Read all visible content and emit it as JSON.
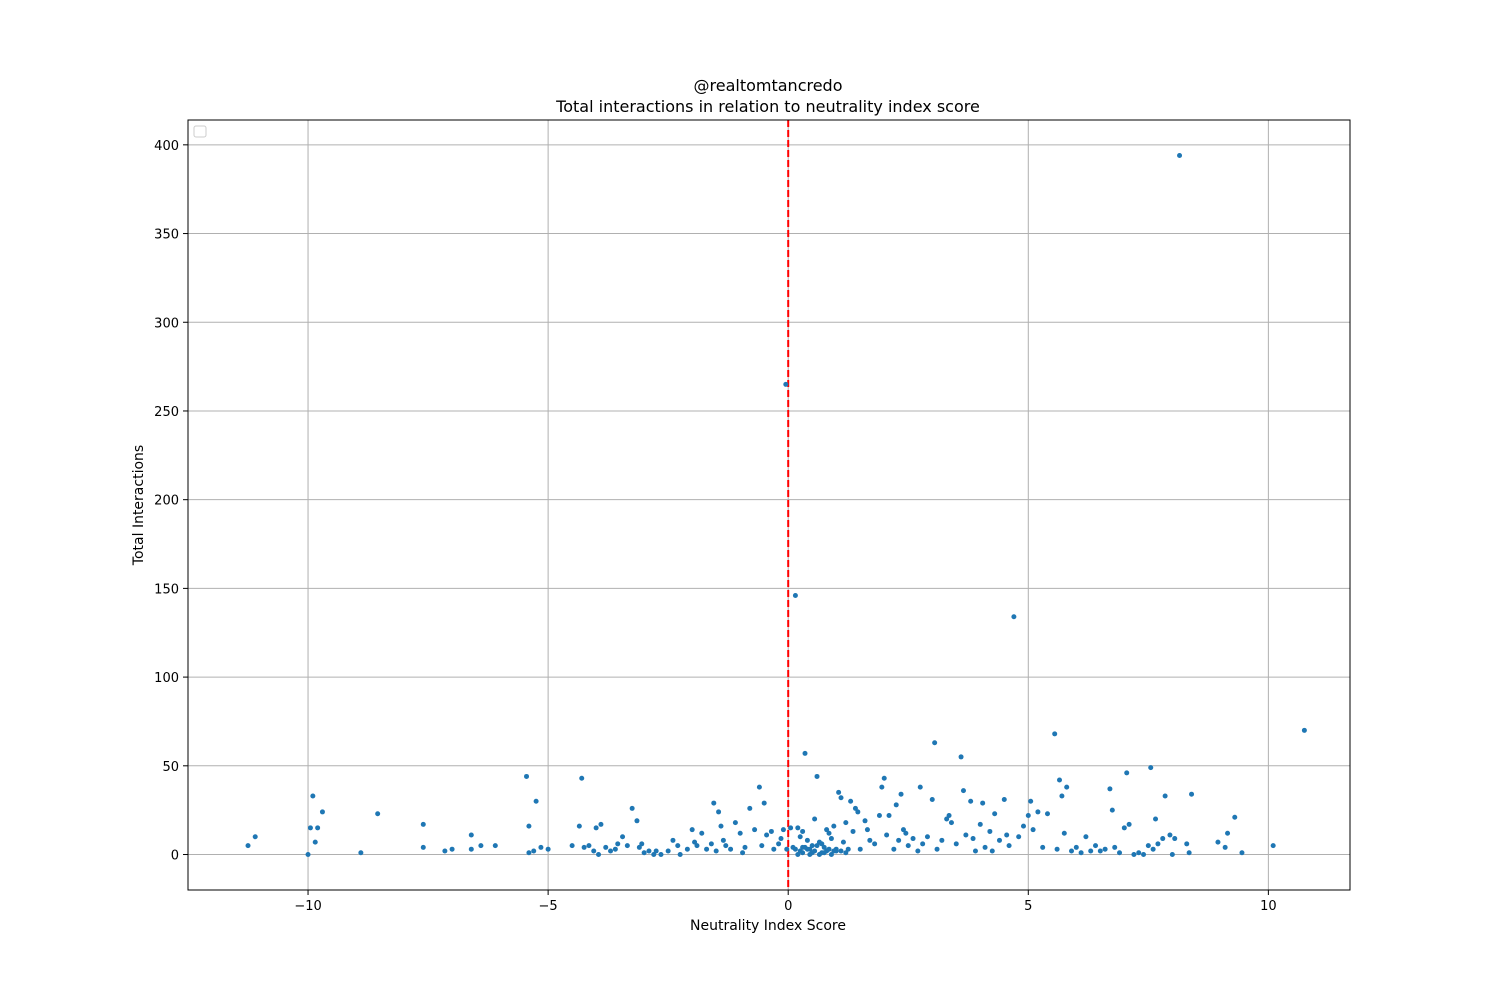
{
  "chart_data": {
    "type": "scatter",
    "title": "@realtomtancredo",
    "subtitle": "Total interactions in relation to neutrality index score",
    "xlabel": "Neutrality Index Score",
    "ylabel": "Total Interactions",
    "xlim": [
      -12.5,
      11.7
    ],
    "ylim": [
      -20,
      414
    ],
    "xticks": [
      -10,
      -5,
      0,
      5,
      10
    ],
    "xtick_labels": [
      "−10",
      "−5",
      "0",
      "5",
      "10"
    ],
    "yticks": [
      0,
      50,
      100,
      150,
      200,
      250,
      300,
      350,
      400
    ],
    "ytick_labels": [
      "0",
      "50",
      "100",
      "150",
      "200",
      "250",
      "300",
      "350",
      "400"
    ],
    "grid": true,
    "legend": "top-left, empty",
    "reference_line": {
      "x": 0,
      "style": "dashed",
      "color": "#ff0000"
    },
    "point_color": "#1f77b4",
    "series": [
      {
        "x": [
          -11.25,
          -11.1,
          -10,
          -9.95,
          -9.9,
          -9.85,
          -9.8,
          -9.7,
          -8.9,
          -8.55,
          -7.6,
          -7.6,
          -7.15,
          -7.0,
          -6.6,
          -6.6,
          -6.4,
          -6.1,
          -5.45,
          -5.4,
          -5.4,
          -5.3,
          -5.25,
          -5.15,
          -5.0,
          -4.5,
          -4.35,
          -4.3,
          -4.25,
          -4.15,
          -4.05,
          -4.0,
          -3.95,
          -3.9,
          -3.8,
          -3.7,
          -3.6,
          -3.55,
          -3.45,
          -3.35,
          -3.25,
          -3.15,
          -3.1,
          -3.05,
          -3.0,
          -2.9,
          -2.8,
          -2.75,
          -2.65,
          -2.5,
          -2.4,
          -2.3,
          -2.25,
          -2.1,
          -2.0,
          -1.95,
          -1.9,
          -1.8,
          -1.7,
          -1.6,
          -1.55,
          -1.5,
          -1.45,
          -1.4,
          -1.35,
          -1.3,
          -1.2,
          -1.1,
          -1.0,
          -0.95,
          -0.9,
          -0.8,
          -0.7,
          -0.6,
          -0.55,
          -0.5,
          -0.45,
          -0.35,
          -0.3,
          -0.2,
          -0.15,
          -0.1,
          -0.05,
          -0.03,
          0.05,
          0.1,
          0.15,
          0.2,
          0.25,
          0.3,
          0.3,
          0.35,
          0.4,
          0.45,
          0.5,
          0.55,
          0.6,
          0.65,
          0.7,
          0.75,
          0.8,
          0.85,
          0.9,
          0.95,
          1.0,
          1.05,
          1.1,
          1.15,
          1.2,
          1.25,
          1.3,
          1.35,
          1.4,
          1.45,
          1.5,
          1.6,
          1.65,
          1.7,
          1.8,
          1.9,
          1.95,
          2.0,
          2.05,
          2.1,
          2.2,
          2.25,
          2.3,
          2.35,
          2.4,
          2.45,
          2.5,
          2.6,
          2.7,
          2.75,
          2.8,
          2.9,
          3.0,
          3.05,
          3.1,
          3.2,
          3.3,
          3.35,
          3.4,
          3.5,
          3.6,
          3.65,
          3.7,
          3.8,
          3.85,
          3.9,
          4.0,
          4.05,
          4.1,
          4.2,
          4.25,
          4.3,
          4.4,
          4.5,
          4.55,
          4.6,
          4.7,
          4.8,
          4.9,
          5.0,
          5.05,
          5.1,
          5.2,
          5.3,
          5.4,
          5.55,
          5.6,
          5.65,
          5.7,
          5.75,
          5.8,
          5.9,
          6.0,
          6.1,
          6.2,
          6.3,
          6.4,
          6.5,
          6.6,
          6.7,
          6.75,
          6.8,
          6.9,
          7.0,
          7.05,
          7.1,
          7.2,
          7.3,
          7.4,
          7.5,
          7.55,
          7.6,
          7.65,
          7.7,
          7.8,
          7.85,
          7.95,
          8.0,
          8.05,
          8.15,
          8.3,
          8.35,
          8.4,
          8.95,
          9.1,
          9.15,
          9.3,
          9.45,
          10.1,
          10.75,
          0.7,
          0.8,
          0.9,
          1.0,
          0.6,
          0.55,
          0.65,
          0.75,
          0.85,
          0.95,
          0.5,
          0.45,
          0.4,
          1.1,
          1.2,
          0.35,
          0.25,
          0.15,
          0.2,
          0.3
        ],
        "y": [
          5,
          10,
          0,
          15,
          33,
          7,
          15,
          24,
          1,
          23,
          17,
          4,
          2,
          3,
          11,
          3,
          5,
          5,
          44,
          16,
          1,
          2,
          30,
          4,
          3,
          5,
          16,
          43,
          4,
          5,
          2,
          15,
          0,
          17,
          4,
          2,
          3,
          6,
          10,
          5,
          26,
          19,
          4,
          6,
          1,
          2,
          0,
          2,
          0,
          2,
          8,
          5,
          0,
          3,
          14,
          7,
          5,
          12,
          3,
          6,
          29,
          2,
          24,
          16,
          8,
          5,
          3,
          18,
          12,
          1,
          4,
          26,
          14,
          38,
          5,
          29,
          11,
          13,
          3,
          6,
          9,
          14,
          265,
          3,
          15,
          4,
          146,
          15,
          10,
          13,
          4,
          57,
          8,
          3,
          5,
          20,
          44,
          7,
          6,
          4,
          14,
          12,
          9,
          16,
          2,
          35,
          32,
          7,
          18,
          3,
          30,
          13,
          26,
          24,
          3,
          19,
          14,
          8,
          6,
          22,
          38,
          43,
          11,
          22,
          3,
          28,
          8,
          34,
          14,
          12,
          5,
          9,
          2,
          38,
          6,
          10,
          31,
          63,
          3,
          8,
          20,
          22,
          18,
          6,
          55,
          36,
          11,
          30,
          9,
          2,
          17,
          29,
          4,
          13,
          2,
          23,
          8,
          31,
          11,
          5,
          134,
          10,
          16,
          22,
          30,
          14,
          24,
          4,
          23,
          68,
          3,
          42,
          33,
          12,
          38,
          2,
          4,
          1,
          10,
          2,
          5,
          2,
          3,
          37,
          25,
          4,
          1,
          15,
          46,
          17,
          0,
          1,
          0,
          5,
          49,
          3,
          20,
          6,
          9,
          33,
          11,
          0,
          9,
          394,
          6,
          1,
          34,
          7,
          4,
          12,
          21,
          1,
          5,
          70,
          1,
          2,
          0,
          3,
          5,
          2,
          0,
          1,
          3,
          2,
          1,
          0,
          3,
          2,
          1,
          4,
          2,
          3,
          0,
          1
        ]
      }
    ]
  }
}
